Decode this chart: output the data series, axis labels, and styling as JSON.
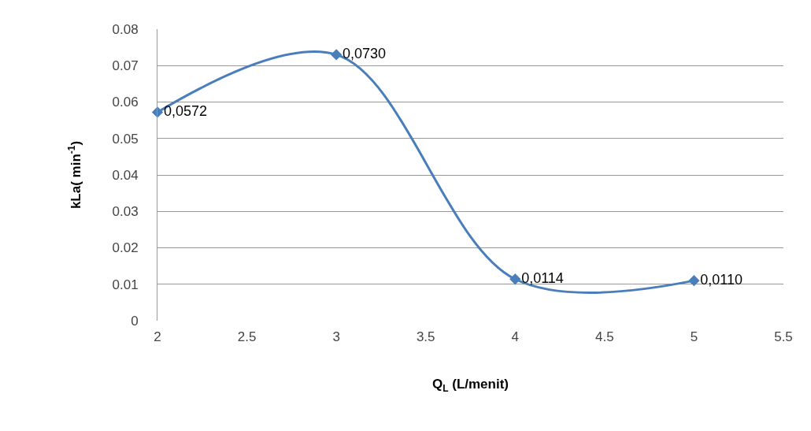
{
  "chart_data": {
    "type": "line",
    "xlabel": "Q$_{L}$ (L/menit)",
    "ylabel": "kLa( min$^{-1}$)",
    "x": [
      2,
      3,
      4,
      5
    ],
    "series": [
      {
        "color": "#4a7ebb",
        "values": [
          0.0572,
          0.073,
          0.0114,
          0.011
        ],
        "value_labels": [
          "0,0572",
          "0,0730",
          "0,0114",
          "0,0110"
        ]
      }
    ],
    "xlim": [
      2,
      5.5
    ],
    "xticks": [
      2,
      2.5,
      3,
      3.5,
      4,
      4.5,
      5,
      5.5
    ],
    "ylim": [
      0,
      0.08
    ],
    "yticks": [
      0,
      0.01,
      0.02,
      0.03,
      0.04,
      0.05,
      0.06,
      0.07,
      0.08
    ],
    "grid": "y",
    "legend": false,
    "marker": "diamond",
    "line_style": "solid"
  }
}
